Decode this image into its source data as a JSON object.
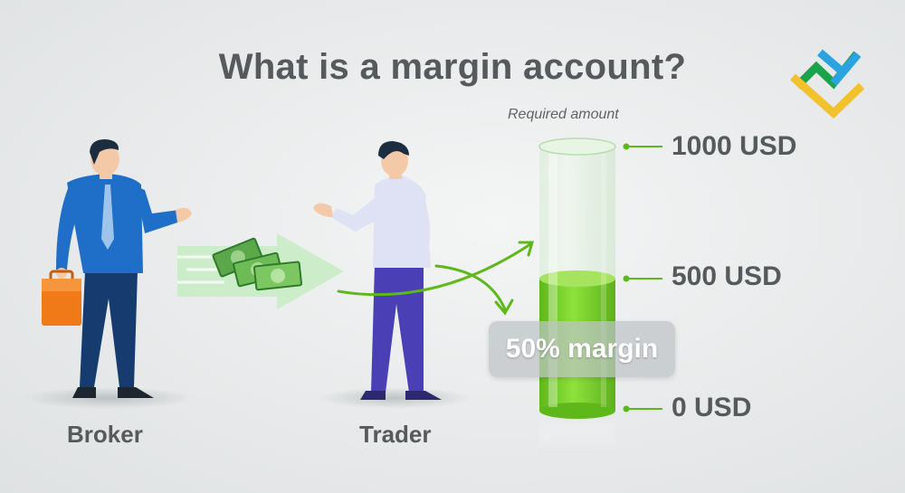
{
  "title": "What is a margin account?",
  "required_amount_label": "Required amount",
  "levels": {
    "top": "1000 USD",
    "mid": "500 USD",
    "bottom": "0 USD"
  },
  "margin_badge": "50% margin",
  "people": {
    "broker": "Broker",
    "trader": "Trader"
  },
  "fill_fraction": 0.5,
  "colors": {
    "liquid_green": "#7dd12a",
    "accent_green": "#4caf50",
    "broker_blue": "#1f6fc9",
    "trader_purple": "#4a3fb5",
    "briefcase_orange": "#f07a17",
    "text_gray": "#555a5c"
  },
  "icons": [
    "logo-icon",
    "money-icon",
    "arrow-icon",
    "curved-arrow-icon"
  ]
}
